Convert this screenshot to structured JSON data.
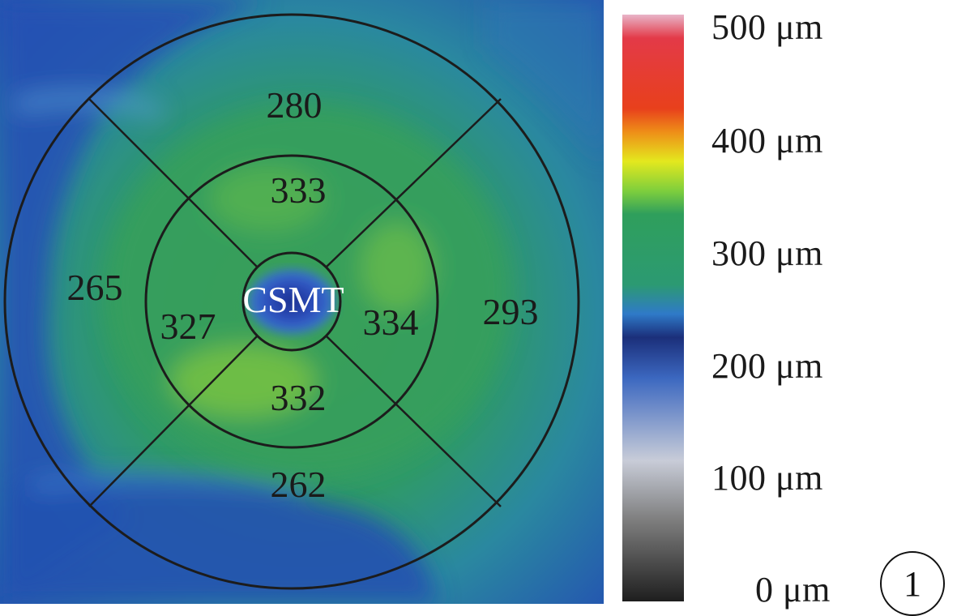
{
  "thickness_map": {
    "center_label": "CSMT",
    "inner_ring": {
      "superior": "333",
      "temporal": "327",
      "nasal": "334",
      "inferior": "332"
    },
    "outer_ring": {
      "superior": "280",
      "temporal": "265",
      "nasal": "293",
      "inferior": "262"
    }
  },
  "color_scale": {
    "labels": [
      "500 μm",
      "400 μm",
      "300 μm",
      "200 μm",
      "100 μm",
      "0 μm"
    ],
    "stops": [
      "#e8b4c8",
      "#e33a48",
      "#e8401c",
      "#ee8e18",
      "#e4e81e",
      "#7fcf3c",
      "#2f9f5c",
      "#2c9a72",
      "#2f7ac8",
      "#1b2f7a",
      "#3c68c0",
      "#c8ccd8",
      "#7f7f7f",
      "#1e1e1e"
    ]
  },
  "figure_number": "1"
}
